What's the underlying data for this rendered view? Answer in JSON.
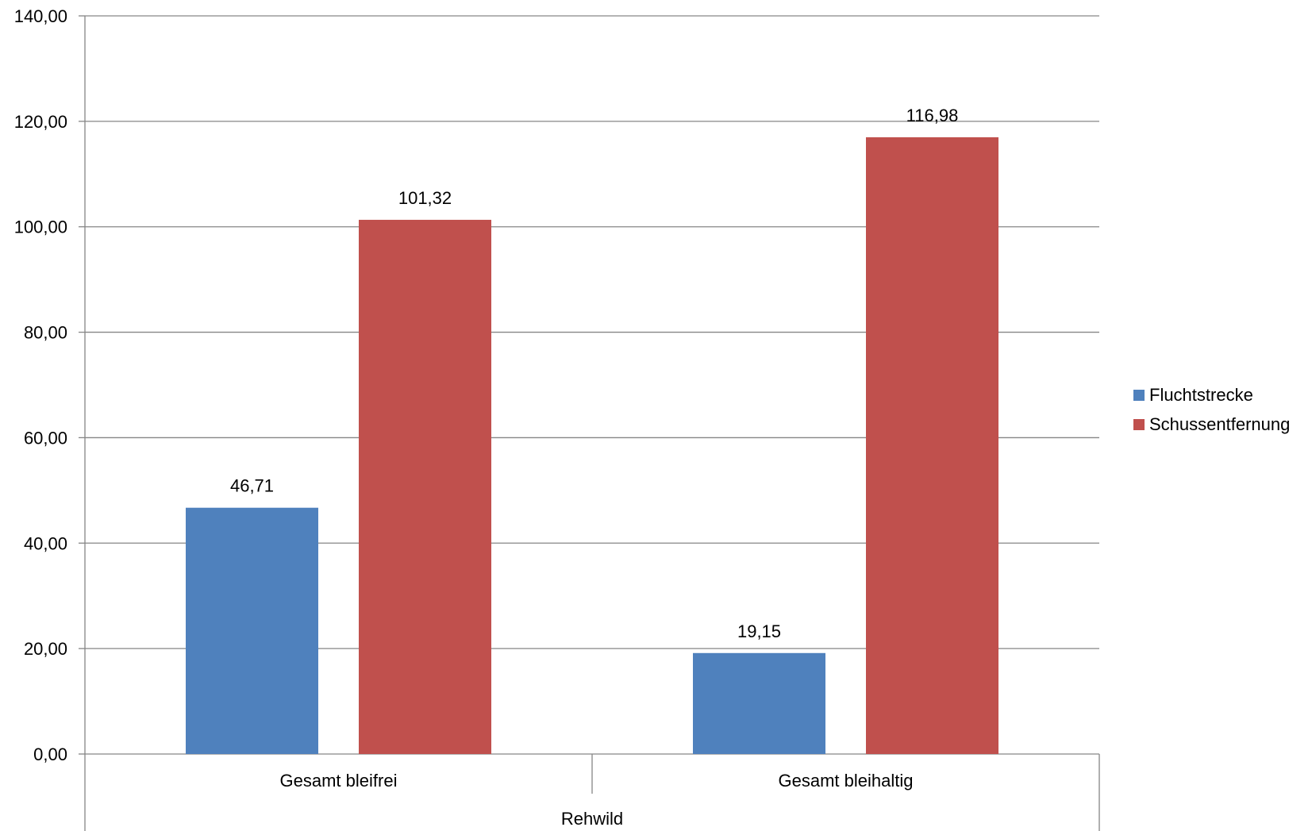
{
  "chart_data": {
    "type": "bar",
    "title": "",
    "xlabel": "",
    "ylabel": "",
    "group_label": "Rehwild",
    "categories": [
      "Gesamt bleifrei",
      "Gesamt bleihaltig"
    ],
    "series": [
      {
        "name": "Fluchtstrecke",
        "values": [
          46.71,
          19.15
        ],
        "color": "#4f81bd"
      },
      {
        "name": "Schussentfernung",
        "values": [
          101.32,
          116.98
        ],
        "color": "#c0504d"
      }
    ],
    "data_labels": [
      [
        "46,71",
        "19,15"
      ],
      [
        "101,32",
        "116,98"
      ]
    ],
    "ylim": [
      0,
      140
    ],
    "yticks": [
      0,
      20,
      40,
      60,
      80,
      100,
      120,
      140
    ],
    "ytick_labels": [
      "0,00",
      "20,00",
      "40,00",
      "60,00",
      "80,00",
      "100,00",
      "120,00",
      "140,00"
    ],
    "grid": true,
    "legend_position": "right"
  }
}
